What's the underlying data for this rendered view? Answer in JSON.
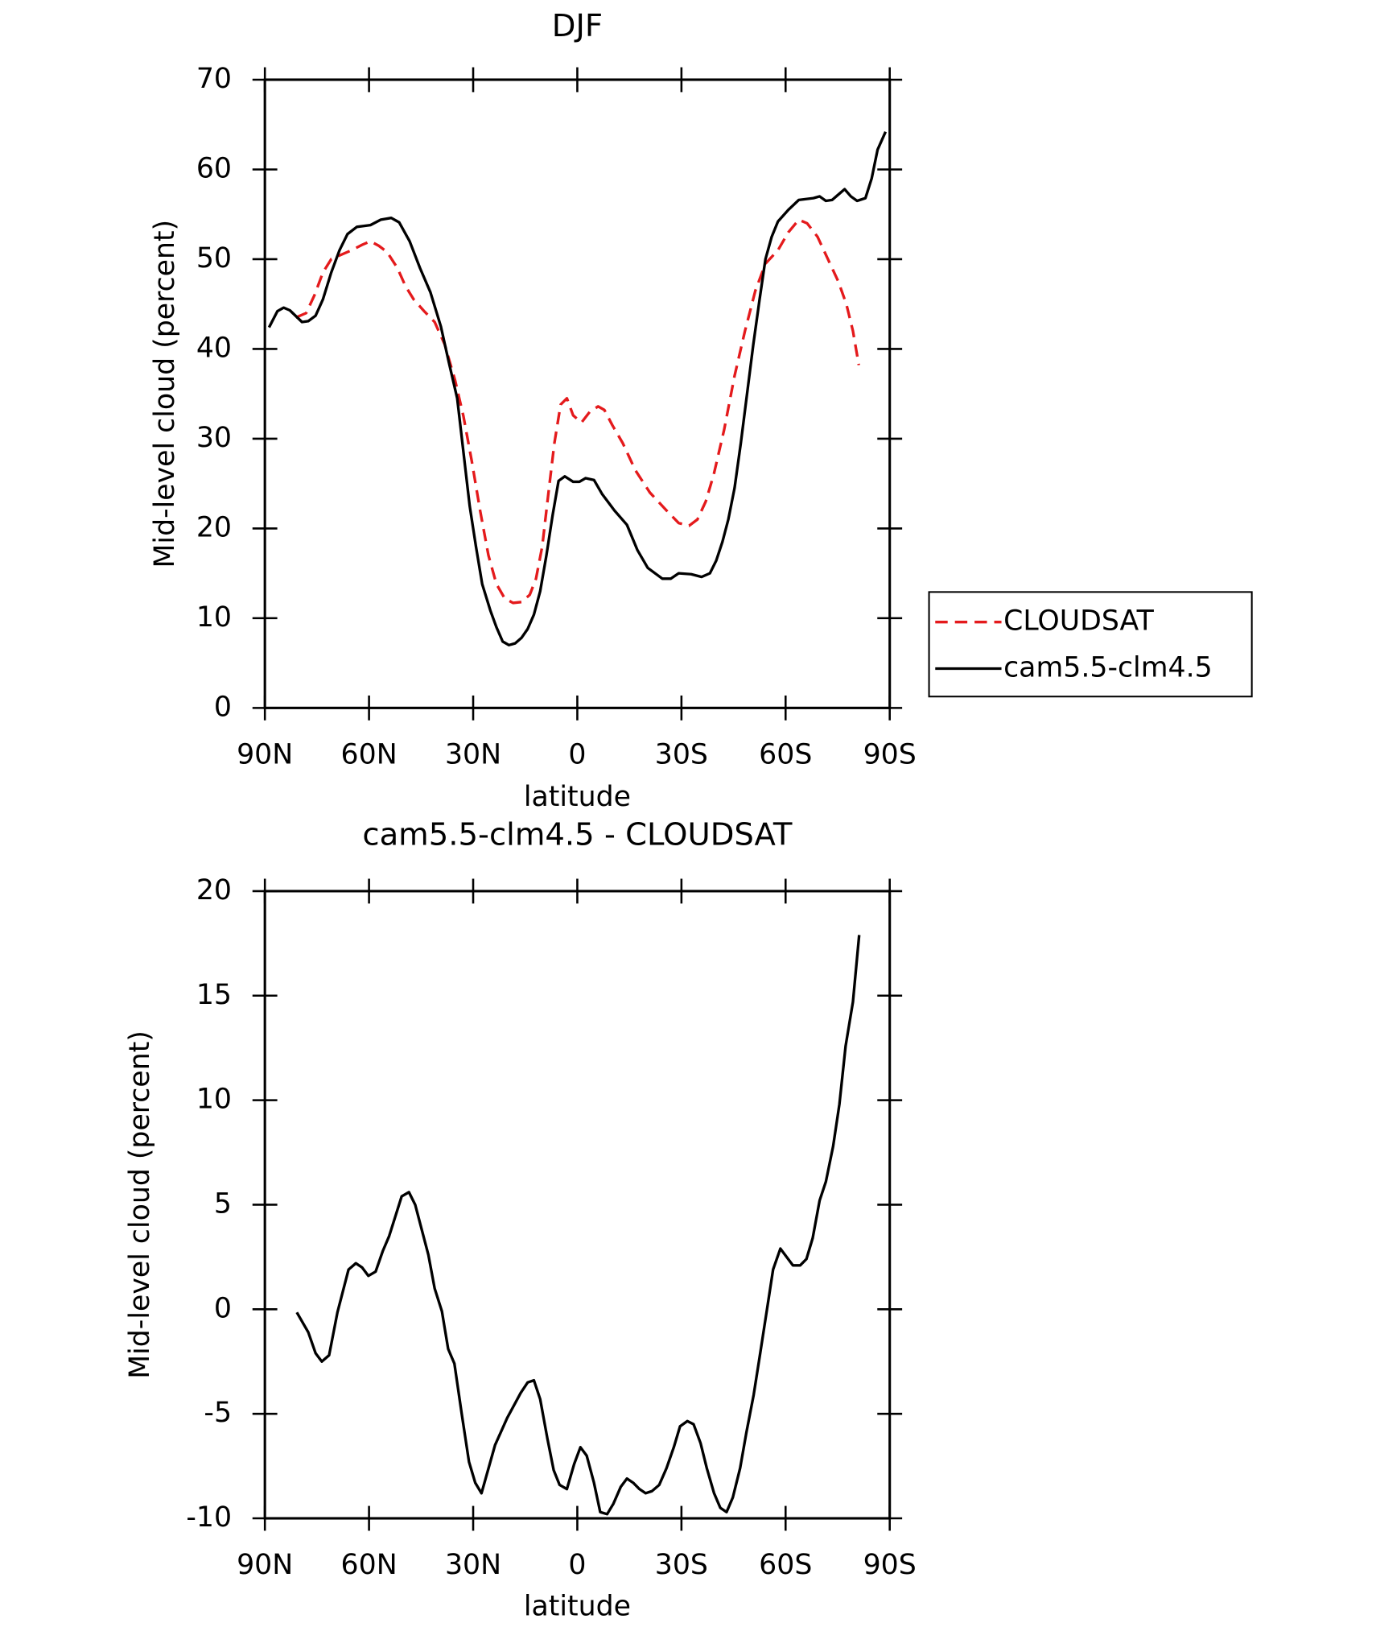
{
  "chart_data": [
    {
      "type": "line",
      "title": "DJF",
      "xlabel": "latitude",
      "ylabel": "Mid-level cloud (percent)",
      "xlim": [
        90,
        -90
      ],
      "xticks": [
        {
          "value": 90,
          "label": "90N"
        },
        {
          "value": 60,
          "label": "60N"
        },
        {
          "value": 30,
          "label": "30N"
        },
        0,
        {
          "value": -30,
          "label": "30S"
        },
        {
          "value": -60,
          "label": "60S"
        },
        {
          "value": -90,
          "label": "90S"
        }
      ],
      "ylim": [
        0,
        70
      ],
      "yticks": [
        0,
        10,
        20,
        30,
        40,
        50,
        60,
        70
      ],
      "legend": "right",
      "series": [
        {
          "name": "CLOUDSAT",
          "color": "#e41a1c",
          "dash": true,
          "x": [
            81.1,
            78.1,
            75.7,
            73.3,
            70.9,
            68.0,
            65.0,
            62.0,
            59.6,
            57.2,
            54.8,
            51.8,
            49.5,
            47.1,
            44.1,
            41.1,
            38.2,
            35.2,
            32.8,
            30.4,
            28.0,
            25.6,
            23.3,
            20.9,
            18.5,
            16.1,
            13.7,
            11.9,
            10.1,
            8.3,
            6.6,
            4.8,
            3.0,
            1.2,
            -1.2,
            -3.6,
            -6.0,
            -7.8,
            -10.1,
            -13.1,
            -16.7,
            -20.9,
            -25.7,
            -29.2,
            -32.2,
            -34.6,
            -37.0,
            -39.3,
            -42.3,
            -45.3,
            -48.3,
            -51.3,
            -54.2,
            -57.8,
            -60.8,
            -63.8,
            -66.2,
            -69.2,
            -72.2,
            -75.2,
            -77.5,
            -79.4,
            -81.1
          ],
          "values": [
            43.5,
            44.0,
            46.0,
            48.5,
            50.0,
            50.5,
            51.0,
            51.6,
            52.0,
            51.5,
            50.8,
            49.0,
            47.0,
            45.5,
            44.2,
            43.0,
            40.5,
            36.5,
            32.5,
            27.5,
            22.0,
            17.0,
            13.8,
            12.2,
            11.7,
            11.8,
            12.6,
            14.4,
            18.0,
            24.0,
            29.5,
            33.8,
            34.5,
            32.6,
            31.8,
            33.0,
            33.6,
            33.2,
            31.5,
            29.5,
            26.5,
            24.0,
            22.0,
            20.6,
            20.3,
            21.0,
            23.0,
            26.0,
            31.0,
            37.0,
            42.0,
            46.5,
            49.5,
            51.0,
            53.0,
            54.4,
            54.0,
            52.5,
            50.0,
            47.5,
            45.0,
            42.0,
            38.2
          ]
        },
        {
          "name": "cam5.5-clm4.5",
          "color": "#000000",
          "dash": false,
          "x": [
            88.8,
            86.4,
            84.6,
            82.8,
            79.3,
            77.5,
            75.4,
            73.3,
            70.9,
            68.5,
            66.2,
            63.5,
            59.6,
            56.6,
            53.6,
            51.3,
            48.3,
            45.3,
            42.3,
            39.3,
            37.0,
            34.6,
            32.8,
            31.0,
            29.2,
            27.4,
            25.0,
            23.3,
            21.5,
            19.7,
            17.9,
            16.1,
            14.3,
            12.5,
            10.7,
            8.9,
            7.1,
            5.4,
            3.6,
            1.2,
            -0.6,
            -2.4,
            -4.8,
            -7.2,
            -10.7,
            -14.3,
            -17.3,
            -20.3,
            -24.5,
            -26.9,
            -29.2,
            -32.8,
            -35.8,
            -38.2,
            -40.0,
            -41.8,
            -43.5,
            -45.3,
            -47.1,
            -48.9,
            -50.7,
            -52.5,
            -54.2,
            -56.0,
            -57.8,
            -60.8,
            -63.8,
            -68.0,
            -69.8,
            -71.6,
            -73.4,
            -75.2,
            -77.0,
            -78.8,
            -80.6,
            -83.0,
            -84.8,
            -86.5,
            -88.8
          ],
          "values": [
            42.4,
            44.2,
            44.6,
            44.3,
            43.0,
            43.1,
            43.7,
            45.5,
            48.5,
            51.0,
            52.8,
            53.6,
            53.8,
            54.4,
            54.6,
            54.1,
            52.0,
            49.0,
            46.3,
            42.5,
            38.5,
            34.5,
            28.5,
            22.5,
            18.0,
            13.8,
            10.8,
            9.0,
            7.4,
            7.0,
            7.2,
            7.8,
            8.8,
            10.4,
            13.0,
            17.0,
            21.5,
            25.3,
            25.8,
            25.2,
            25.2,
            25.6,
            25.4,
            23.8,
            22.0,
            20.4,
            17.6,
            15.6,
            14.4,
            14.4,
            15.0,
            14.9,
            14.6,
            15.0,
            16.4,
            18.5,
            21.0,
            24.5,
            29.5,
            35.0,
            40.5,
            45.5,
            50.0,
            52.5,
            54.2,
            55.5,
            56.6,
            56.8,
            57.0,
            56.5,
            56.6,
            57.2,
            57.8,
            57.0,
            56.5,
            56.8,
            59.0,
            62.2,
            64.2
          ]
        }
      ]
    },
    {
      "type": "line",
      "title": "cam5.5-clm4.5 - CLOUDSAT",
      "xlabel": "latitude",
      "ylabel": "Mid-level cloud (percent)",
      "xlim": [
        90,
        -90
      ],
      "xticks": [
        {
          "value": 90,
          "label": "90N"
        },
        {
          "value": 60,
          "label": "60N"
        },
        {
          "value": 30,
          "label": "30N"
        },
        0,
        {
          "value": -30,
          "label": "30S"
        },
        {
          "value": -60,
          "label": "60S"
        },
        {
          "value": -90,
          "label": "90S"
        }
      ],
      "ylim": [
        -10,
        20
      ],
      "yticks": [
        -10,
        -5,
        0,
        5,
        10,
        15,
        20
      ],
      "series": [
        {
          "color": "#000000",
          "dash": false,
          "x": [
            80.8,
            77.5,
            75.4,
            73.6,
            71.5,
            69.1,
            65.9,
            63.8,
            62.0,
            60.2,
            58.1,
            56.0,
            54.2,
            50.6,
            48.5,
            46.7,
            42.9,
            41.1,
            39.0,
            37.2,
            35.4,
            33.3,
            31.2,
            29.4,
            27.6,
            23.7,
            20.2,
            16.3,
            14.3,
            12.5,
            10.7,
            8.6,
            6.8,
            5.1,
            3.0,
            0.9,
            -0.9,
            -2.7,
            -4.8,
            -6.6,
            -8.6,
            -10.4,
            -12.5,
            -14.3,
            -16.1,
            -17.9,
            -19.7,
            -21.5,
            -23.6,
            -25.7,
            -27.8,
            -29.6,
            -31.7,
            -33.5,
            -35.5,
            -37.3,
            -39.4,
            -41.2,
            -43.0,
            -44.8,
            -46.9,
            -48.7,
            -50.8,
            -52.6,
            -54.6,
            -56.4,
            -58.5,
            -60.3,
            -62.1,
            -64.2,
            -66.0,
            -67.8,
            -69.8,
            -71.6,
            -73.7,
            -75.5,
            -77.3,
            -79.4,
            -81.2
          ],
          "values": [
            -0.15,
            -1.1,
            -2.1,
            -2.5,
            -2.2,
            -0.15,
            1.9,
            2.2,
            2.0,
            1.6,
            1.8,
            2.8,
            3.5,
            5.4,
            5.6,
            5.0,
            2.6,
            1.0,
            -0.1,
            -1.9,
            -2.6,
            -5.0,
            -7.3,
            -8.3,
            -8.8,
            -6.5,
            -5.2,
            -4.0,
            -3.5,
            -3.4,
            -4.3,
            -6.2,
            -7.7,
            -8.4,
            -8.6,
            -7.4,
            -6.6,
            -7.0,
            -8.3,
            -9.7,
            -9.8,
            -9.3,
            -8.5,
            -8.1,
            -8.3,
            -8.6,
            -8.8,
            -8.7,
            -8.4,
            -7.6,
            -6.6,
            -5.6,
            -5.35,
            -5.5,
            -6.4,
            -7.6,
            -8.8,
            -9.5,
            -9.7,
            -9.0,
            -7.6,
            -5.9,
            -4.1,
            -2.2,
            -0.05,
            1.9,
            2.9,
            2.5,
            2.1,
            2.1,
            2.4,
            3.4,
            5.2,
            6.1,
            7.8,
            9.8,
            12.6,
            14.7,
            17.9
          ]
        }
      ]
    }
  ]
}
